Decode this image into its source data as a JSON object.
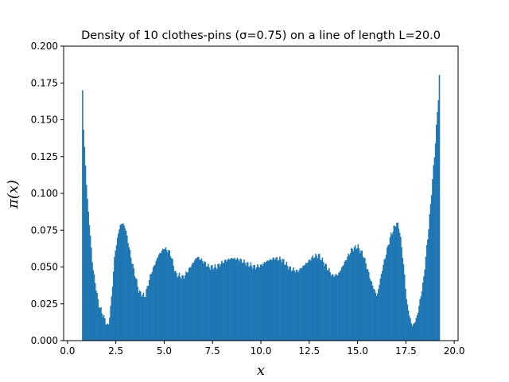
{
  "chart_data": {
    "type": "bar",
    "title": "Density of 10 clothes-pins (σ=0.75) on a line of length L=20.0",
    "xlabel": "x",
    "ylabel": "π(x)",
    "xlim": [
      -0.2,
      20.2
    ],
    "ylim": [
      0.0,
      0.2
    ],
    "x_ticks": [
      0.0,
      2.5,
      5.0,
      7.5,
      10.0,
      12.5,
      15.0,
      17.5,
      20.0
    ],
    "x_tick_labels": [
      "0.0",
      "2.5",
      "5.0",
      "7.5",
      "10.0",
      "12.5",
      "15.0",
      "17.5",
      "20.0"
    ],
    "y_ticks": [
      0.0,
      0.025,
      0.05,
      0.075,
      0.1,
      0.125,
      0.15,
      0.175,
      0.2
    ],
    "y_tick_labels": [
      "0.000",
      "0.025",
      "0.050",
      "0.075",
      "0.100",
      "0.125",
      "0.150",
      "0.175",
      "0.200"
    ],
    "bar_color": "#1f77b4",
    "grid": false,
    "legend": "none",
    "support": [
      0.75,
      19.25
    ],
    "bin_width": 0.05,
    "profile": {
      "x": [
        0.75,
        0.8,
        1.0,
        1.3,
        1.6,
        1.9,
        2.1,
        2.25,
        2.45,
        2.7,
        2.85,
        3.0,
        3.3,
        3.7,
        4.0,
        4.3,
        4.7,
        5.0,
        5.3,
        5.6,
        6.0,
        6.3,
        6.7,
        7.0,
        7.3,
        7.7,
        8.1,
        8.5,
        8.9,
        9.3,
        9.7,
        10.0,
        10.3,
        10.7,
        11.1,
        11.5,
        11.9,
        12.3,
        12.7,
        13.0,
        13.3,
        13.7,
        14.0,
        14.4,
        14.7,
        15.0,
        15.3,
        15.7,
        16.0,
        16.3,
        16.7,
        17.0,
        17.15,
        17.35,
        17.55,
        17.8,
        17.95,
        18.1,
        18.4,
        18.7,
        19.0,
        19.2,
        19.25
      ],
      "y": [
        0.19,
        0.15,
        0.1,
        0.05,
        0.025,
        0.015,
        0.009,
        0.025,
        0.06,
        0.078,
        0.08,
        0.076,
        0.055,
        0.033,
        0.03,
        0.045,
        0.058,
        0.063,
        0.06,
        0.045,
        0.043,
        0.049,
        0.057,
        0.054,
        0.05,
        0.05,
        0.054,
        0.056,
        0.055,
        0.052,
        0.05,
        0.051,
        0.054,
        0.056,
        0.055,
        0.049,
        0.047,
        0.052,
        0.057,
        0.058,
        0.052,
        0.044,
        0.045,
        0.055,
        0.062,
        0.064,
        0.058,
        0.04,
        0.03,
        0.05,
        0.071,
        0.08,
        0.077,
        0.055,
        0.025,
        0.01,
        0.012,
        0.018,
        0.04,
        0.08,
        0.13,
        0.17,
        0.19
      ]
    }
  }
}
